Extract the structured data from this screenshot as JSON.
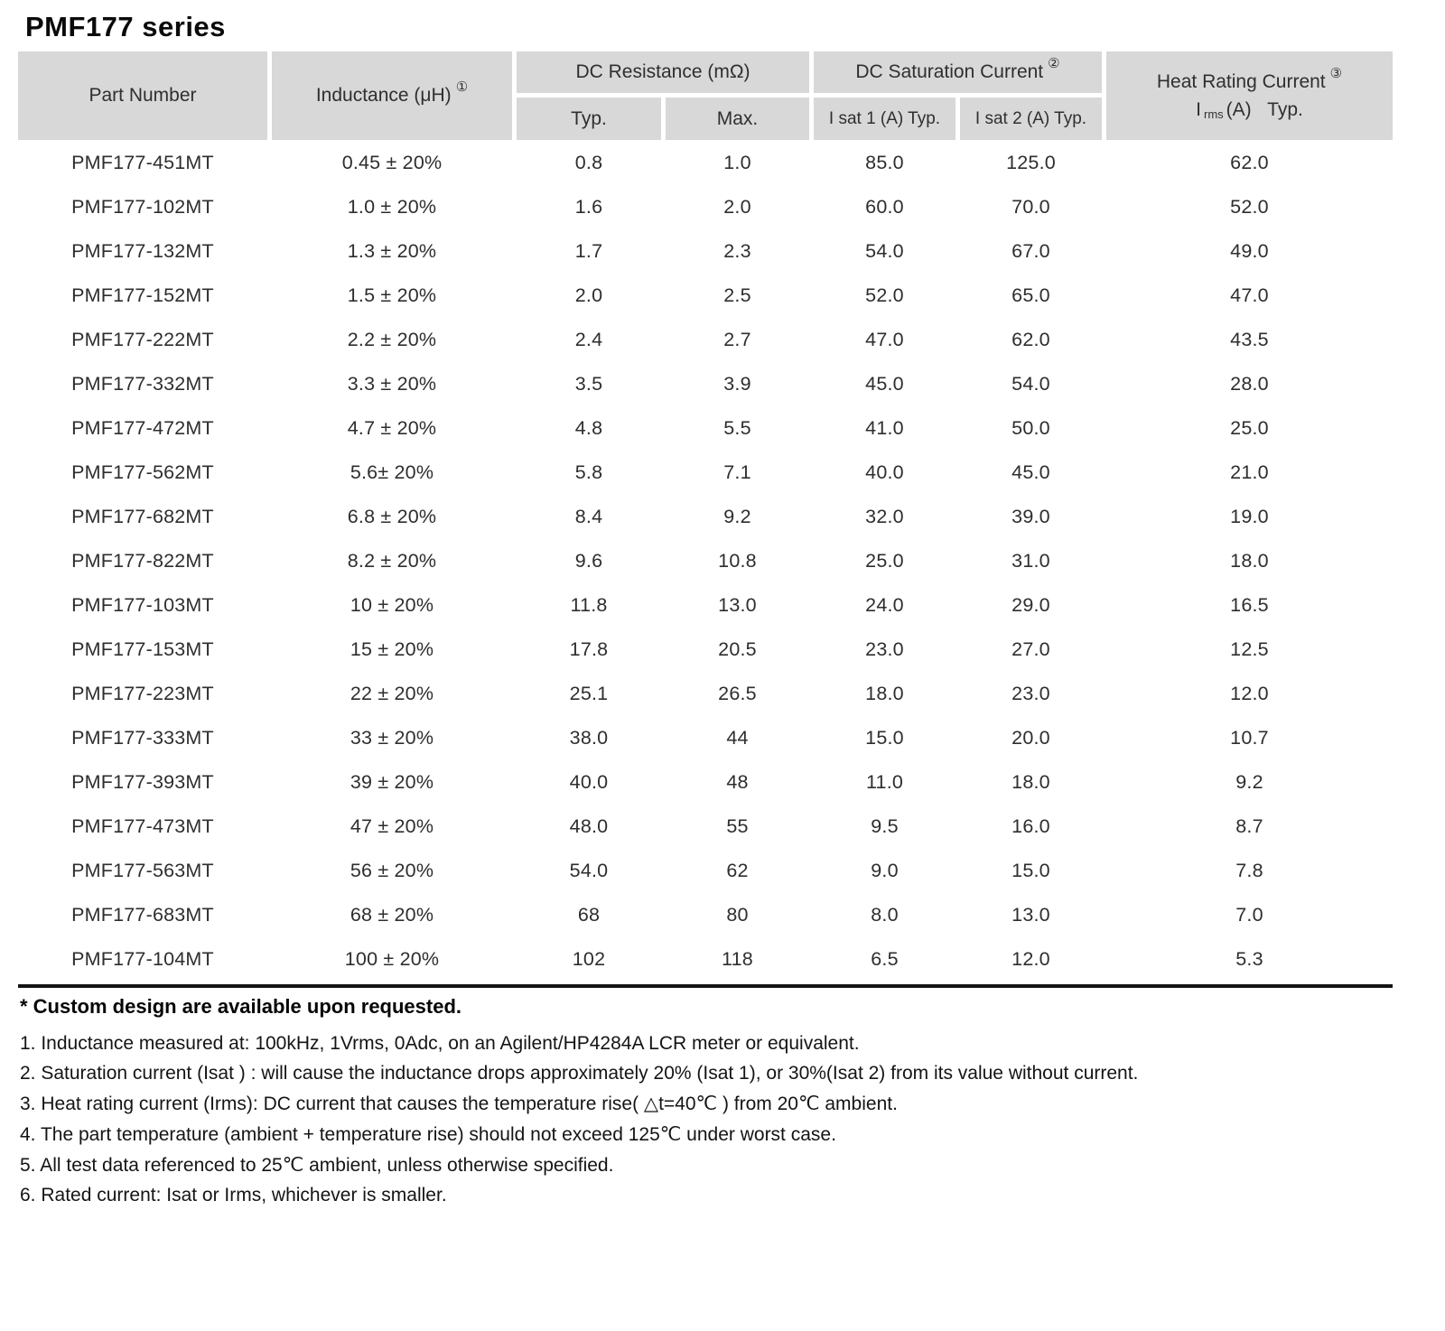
{
  "title": "PMF177 series",
  "table": {
    "headers": {
      "part_number": "Part Number",
      "inductance": "Inductance (μH)",
      "inductance_note": "①",
      "dc_resistance": "DC Resistance (mΩ)",
      "dc_resistance_sub": [
        "Typ.",
        "Max."
      ],
      "dc_saturation": "DC Saturation Current",
      "dc_saturation_note": "②",
      "dc_saturation_sub": [
        "I sat 1  (A)  Typ.",
        "I sat 2  (A)  Typ."
      ],
      "heat_rating": "Heat Rating Current",
      "heat_rating_note": "③",
      "heat_rating_sub_i": "I",
      "heat_rating_sub_rms": "rms",
      "heat_rating_sub_rest": "(A)   Typ."
    },
    "rows": [
      [
        "PMF177-451MT",
        "0.45 ± 20%",
        "0.8",
        "1.0",
        "85.0",
        "125.0",
        "62.0"
      ],
      [
        "PMF177-102MT",
        "1.0 ± 20%",
        "1.6",
        "2.0",
        "60.0",
        "70.0",
        "52.0"
      ],
      [
        "PMF177-132MT",
        "1.3 ± 20%",
        "1.7",
        "2.3",
        "54.0",
        "67.0",
        "49.0"
      ],
      [
        "PMF177-152MT",
        "1.5 ± 20%",
        "2.0",
        "2.5",
        "52.0",
        "65.0",
        "47.0"
      ],
      [
        "PMF177-222MT",
        "2.2 ± 20%",
        "2.4",
        "2.7",
        "47.0",
        "62.0",
        "43.5"
      ],
      [
        "PMF177-332MT",
        "3.3 ± 20%",
        "3.5",
        "3.9",
        "45.0",
        "54.0",
        "28.0"
      ],
      [
        "PMF177-472MT",
        "4.7 ± 20%",
        "4.8",
        "5.5",
        "41.0",
        "50.0",
        "25.0"
      ],
      [
        "PMF177-562MT",
        "5.6± 20%",
        "5.8",
        "7.1",
        "40.0",
        "45.0",
        "21.0"
      ],
      [
        "PMF177-682MT",
        "6.8 ± 20%",
        "8.4",
        "9.2",
        "32.0",
        "39.0",
        "19.0"
      ],
      [
        "PMF177-822MT",
        "8.2 ± 20%",
        "9.6",
        "10.8",
        "25.0",
        "31.0",
        "18.0"
      ],
      [
        "PMF177-103MT",
        "10 ± 20%",
        "11.8",
        "13.0",
        "24.0",
        "29.0",
        "16.5"
      ],
      [
        "PMF177-153MT",
        "15 ± 20%",
        "17.8",
        "20.5",
        "23.0",
        "27.0",
        "12.5"
      ],
      [
        "PMF177-223MT",
        "22 ± 20%",
        "25.1",
        "26.5",
        "18.0",
        "23.0",
        "12.0"
      ],
      [
        "PMF177-333MT",
        "33 ± 20%",
        "38.0",
        "44",
        "15.0",
        "20.0",
        "10.7"
      ],
      [
        "PMF177-393MT",
        "39 ± 20%",
        "40.0",
        "48",
        "11.0",
        "18.0",
        "9.2"
      ],
      [
        "PMF177-473MT",
        "47 ± 20%",
        "48.0",
        "55",
        "9.5",
        "16.0",
        "8.7"
      ],
      [
        "PMF177-563MT",
        "56 ± 20%",
        "54.0",
        "62",
        "9.0",
        "15.0",
        "7.8"
      ],
      [
        "PMF177-683MT",
        "68 ± 20%",
        "68",
        "80",
        "8.0",
        "13.0",
        "7.0"
      ],
      [
        "PMF177-104MT",
        "100 ± 20%",
        "102",
        "118",
        "6.5",
        "12.0",
        "5.3"
      ]
    ]
  },
  "footnotes": {
    "custom": "* Custom design are available upon requested.",
    "notes": [
      "1. Inductance measured at: 100kHz, 1Vrms, 0Adc, on an Agilent/HP4284A LCR meter or equivalent.",
      "2. Saturation current (Isat ) : will cause the inductance drops approximately 20% (Isat 1), or 30%(Isat 2) from its value without current.",
      "3. Heat rating current (Irms): DC current that causes the temperature rise( △t=40℃ ) from 20℃ ambient.",
      "4. The part temperature (ambient + temperature rise) should not exceed 125℃ under worst case.",
      "5. All test data referenced to 25℃ ambient, unless otherwise specified.",
      "6. Rated current: Isat or Irms, whichever is smaller."
    ]
  }
}
